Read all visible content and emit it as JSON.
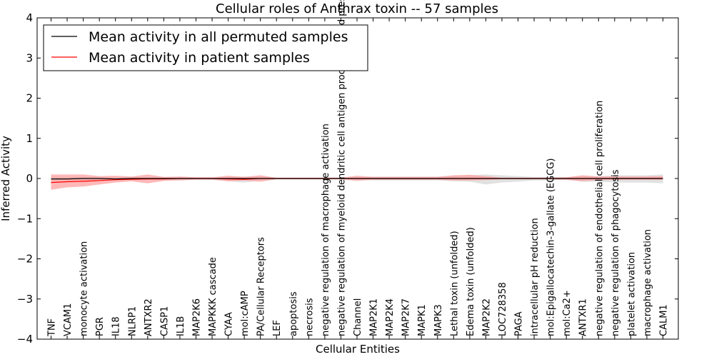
{
  "chart_data": {
    "type": "line",
    "title": "Cellular roles of Anthrax toxin -- 57 samples",
    "xlabel": "Cellular Entities",
    "ylabel": "Inferred Activity",
    "ylim": [
      -4,
      4
    ],
    "yticks": [
      -4,
      -3,
      -2,
      -1,
      0,
      1,
      2,
      3,
      4
    ],
    "ytick_labels": [
      "−4",
      "−3",
      "−2",
      "−1",
      "0",
      "1",
      "2",
      "3",
      "4"
    ],
    "legend_position": "top-left",
    "categories": [
      "TNF",
      "VCAM1",
      "monocyte activation",
      "PGR",
      "IL18",
      "NLRP1",
      "ANTXR2",
      "CASP1",
      "IL1B",
      "MAP2K6",
      "MAPKKK cascade",
      "CYAA",
      "mol:cAMP",
      "PA/Cellular Receptors",
      "LEF",
      "apoptosis",
      "necrosis",
      "negative regulation of macrophage activation",
      "negative regulation of myeloid dendritic cell antigen processing and presentation",
      "Channel",
      "MAP2K1",
      "MAP2K4",
      "MAP2K7",
      "MAPK1",
      "MAPK3",
      "Lethal toxin (unfolded)",
      "Edema toxin (unfolded)",
      "MAP2K2",
      "LOC728358",
      "PAGA",
      "intracellular pH reduction",
      "mol:Epigallocatechin-3-gallate (EGCG)",
      "mol:Ca2+",
      "ANTXR1",
      "negative regulation of endothelial cell proliferation",
      "negative regulation of phagocytosis",
      "platelet activation",
      "macrophage activation",
      "CALM1"
    ],
    "series": [
      {
        "name": "Mean activity in all permuted samples",
        "color": "#000000",
        "values": [
          -0.01,
          -0.01,
          0.0,
          0.0,
          -0.01,
          0.0,
          0.0,
          0.0,
          0.0,
          0.0,
          0.0,
          0.0,
          0.0,
          0.0,
          0.0,
          0.0,
          0.0,
          0.0,
          0.0,
          0.0,
          0.0,
          0.0,
          0.0,
          0.0,
          0.0,
          0.0,
          0.0,
          0.0,
          0.0,
          0.0,
          0.0,
          0.0,
          0.0,
          0.0,
          0.0,
          0.0,
          0.0,
          0.0,
          0.0
        ],
        "band_lower": [
          -0.05,
          -0.05,
          -0.04,
          -0.04,
          -0.04,
          -0.03,
          -0.03,
          -0.03,
          -0.03,
          -0.02,
          -0.02,
          -0.07,
          -0.1,
          -0.05,
          -0.02,
          -0.02,
          -0.02,
          -0.02,
          -0.02,
          -0.03,
          -0.05,
          -0.05,
          -0.05,
          -0.05,
          -0.05,
          -0.07,
          -0.08,
          -0.15,
          -0.1,
          -0.08,
          -0.05,
          -0.05,
          -0.03,
          -0.08,
          -0.08,
          -0.1,
          -0.1,
          -0.1,
          -0.12
        ],
        "band_upper": [
          0.05,
          0.05,
          0.04,
          0.04,
          0.04,
          0.03,
          0.03,
          0.03,
          0.03,
          0.02,
          0.02,
          0.04,
          0.05,
          0.05,
          0.02,
          0.02,
          0.02,
          0.02,
          0.02,
          0.03,
          0.05,
          0.05,
          0.05,
          0.05,
          0.05,
          0.07,
          0.08,
          0.1,
          0.08,
          0.06,
          0.04,
          0.04,
          0.03,
          0.06,
          0.06,
          0.08,
          0.08,
          0.08,
          0.1
        ],
        "band_color": "#c8c8c8"
      },
      {
        "name": "Mean activity in patient samples",
        "color": "#ff0000",
        "values": [
          -0.1,
          -0.08,
          -0.07,
          -0.05,
          -0.03,
          -0.02,
          -0.01,
          -0.01,
          0.0,
          0.0,
          0.0,
          -0.01,
          -0.02,
          0.0,
          0.0,
          0.0,
          0.0,
          0.0,
          0.0,
          0.0,
          0.0,
          0.0,
          0.0,
          0.0,
          0.0,
          0.0,
          0.0,
          0.0,
          0.0,
          0.0,
          0.0,
          0.0,
          0.0,
          0.0,
          0.0,
          0.0,
          0.0,
          0.0,
          0.0
        ],
        "band_lower": [
          -0.28,
          -0.22,
          -0.2,
          -0.15,
          -0.1,
          -0.07,
          -0.12,
          -0.06,
          -0.05,
          -0.03,
          -0.03,
          -0.07,
          -0.05,
          -0.08,
          -0.02,
          -0.02,
          -0.02,
          -0.02,
          -0.02,
          -0.06,
          -0.03,
          -0.03,
          -0.03,
          -0.03,
          -0.03,
          -0.05,
          -0.05,
          -0.04,
          -0.02,
          -0.02,
          -0.02,
          -0.02,
          -0.03,
          -0.07,
          -0.04,
          -0.03,
          -0.03,
          -0.03,
          -0.03
        ],
        "band_upper": [
          0.1,
          0.1,
          0.1,
          0.06,
          0.07,
          0.05,
          0.1,
          0.04,
          0.05,
          0.03,
          0.03,
          0.07,
          0.04,
          0.08,
          0.02,
          0.02,
          0.02,
          0.02,
          0.02,
          0.07,
          0.04,
          0.04,
          0.04,
          0.04,
          0.04,
          0.08,
          0.09,
          0.06,
          0.02,
          0.02,
          0.02,
          0.02,
          0.03,
          0.08,
          0.05,
          0.05,
          0.05,
          0.05,
          0.06
        ],
        "band_color": "#ff9a9a"
      }
    ]
  }
}
